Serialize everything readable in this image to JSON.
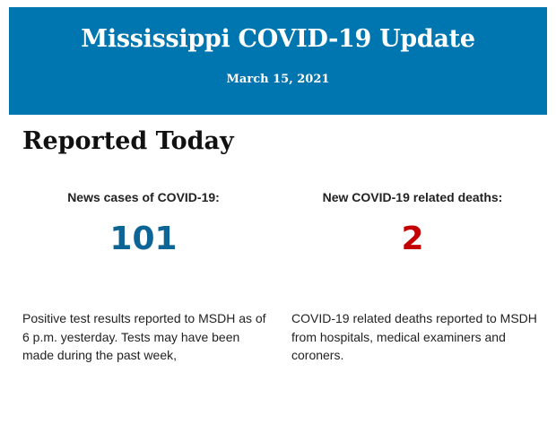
{
  "header": {
    "title": "Mississippi COVID-19 Update",
    "date": "March 15, 2021",
    "background_color": "#0076b0"
  },
  "section_title": "Reported Today",
  "cases": {
    "label": "News cases of COVID-19:",
    "value": "101",
    "color": "#0d6596",
    "description": "Positive test results reported to MSDH as of 6 p.m. yesterday. Tests may have been made during the past week,"
  },
  "deaths": {
    "label": "New COVID-19 related deaths:",
    "value": "2",
    "color": "#c40000",
    "description": "COVID-19 related deaths reported to MSDH from hospitals, medical examiners and coroners."
  }
}
